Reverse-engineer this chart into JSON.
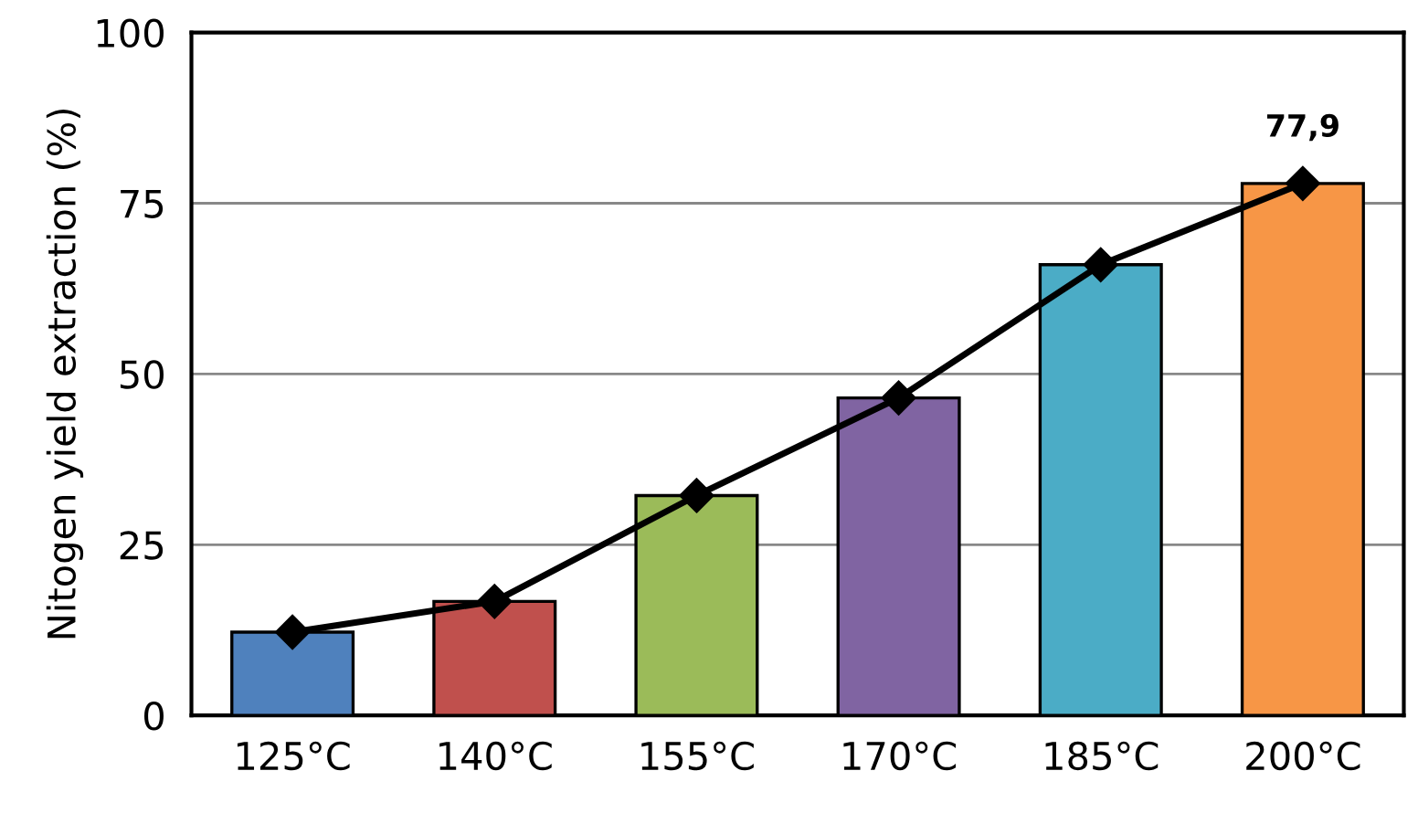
{
  "chart_data": {
    "type": "bar",
    "ylabel": "Nitogen yield extraction (%)",
    "categories": [
      "125°C",
      "140°C",
      "155°C",
      "170°C",
      "185°C",
      "200°C"
    ],
    "series": [
      {
        "colors": [
          "#4f81bd",
          "#c0504d",
          "#9bbb59",
          "#8064a2",
          "#4bacc6",
          "#f79646"
        ],
        "values": [
          12.2,
          16.7,
          32.2,
          46.5,
          66.0,
          77.9
        ]
      },
      {
        "type": "line",
        "color": "#000000",
        "marker": "diamond",
        "line_style": "solid",
        "values": [
          12.2,
          16.7,
          32.2,
          46.5,
          66.0,
          77.9
        ],
        "value_labels": [
          null,
          null,
          null,
          null,
          null,
          "77,9"
        ]
      }
    ],
    "ylim": [
      0,
      100
    ],
    "yticks": [
      0,
      25,
      50,
      75,
      100
    ],
    "grid": "y"
  }
}
